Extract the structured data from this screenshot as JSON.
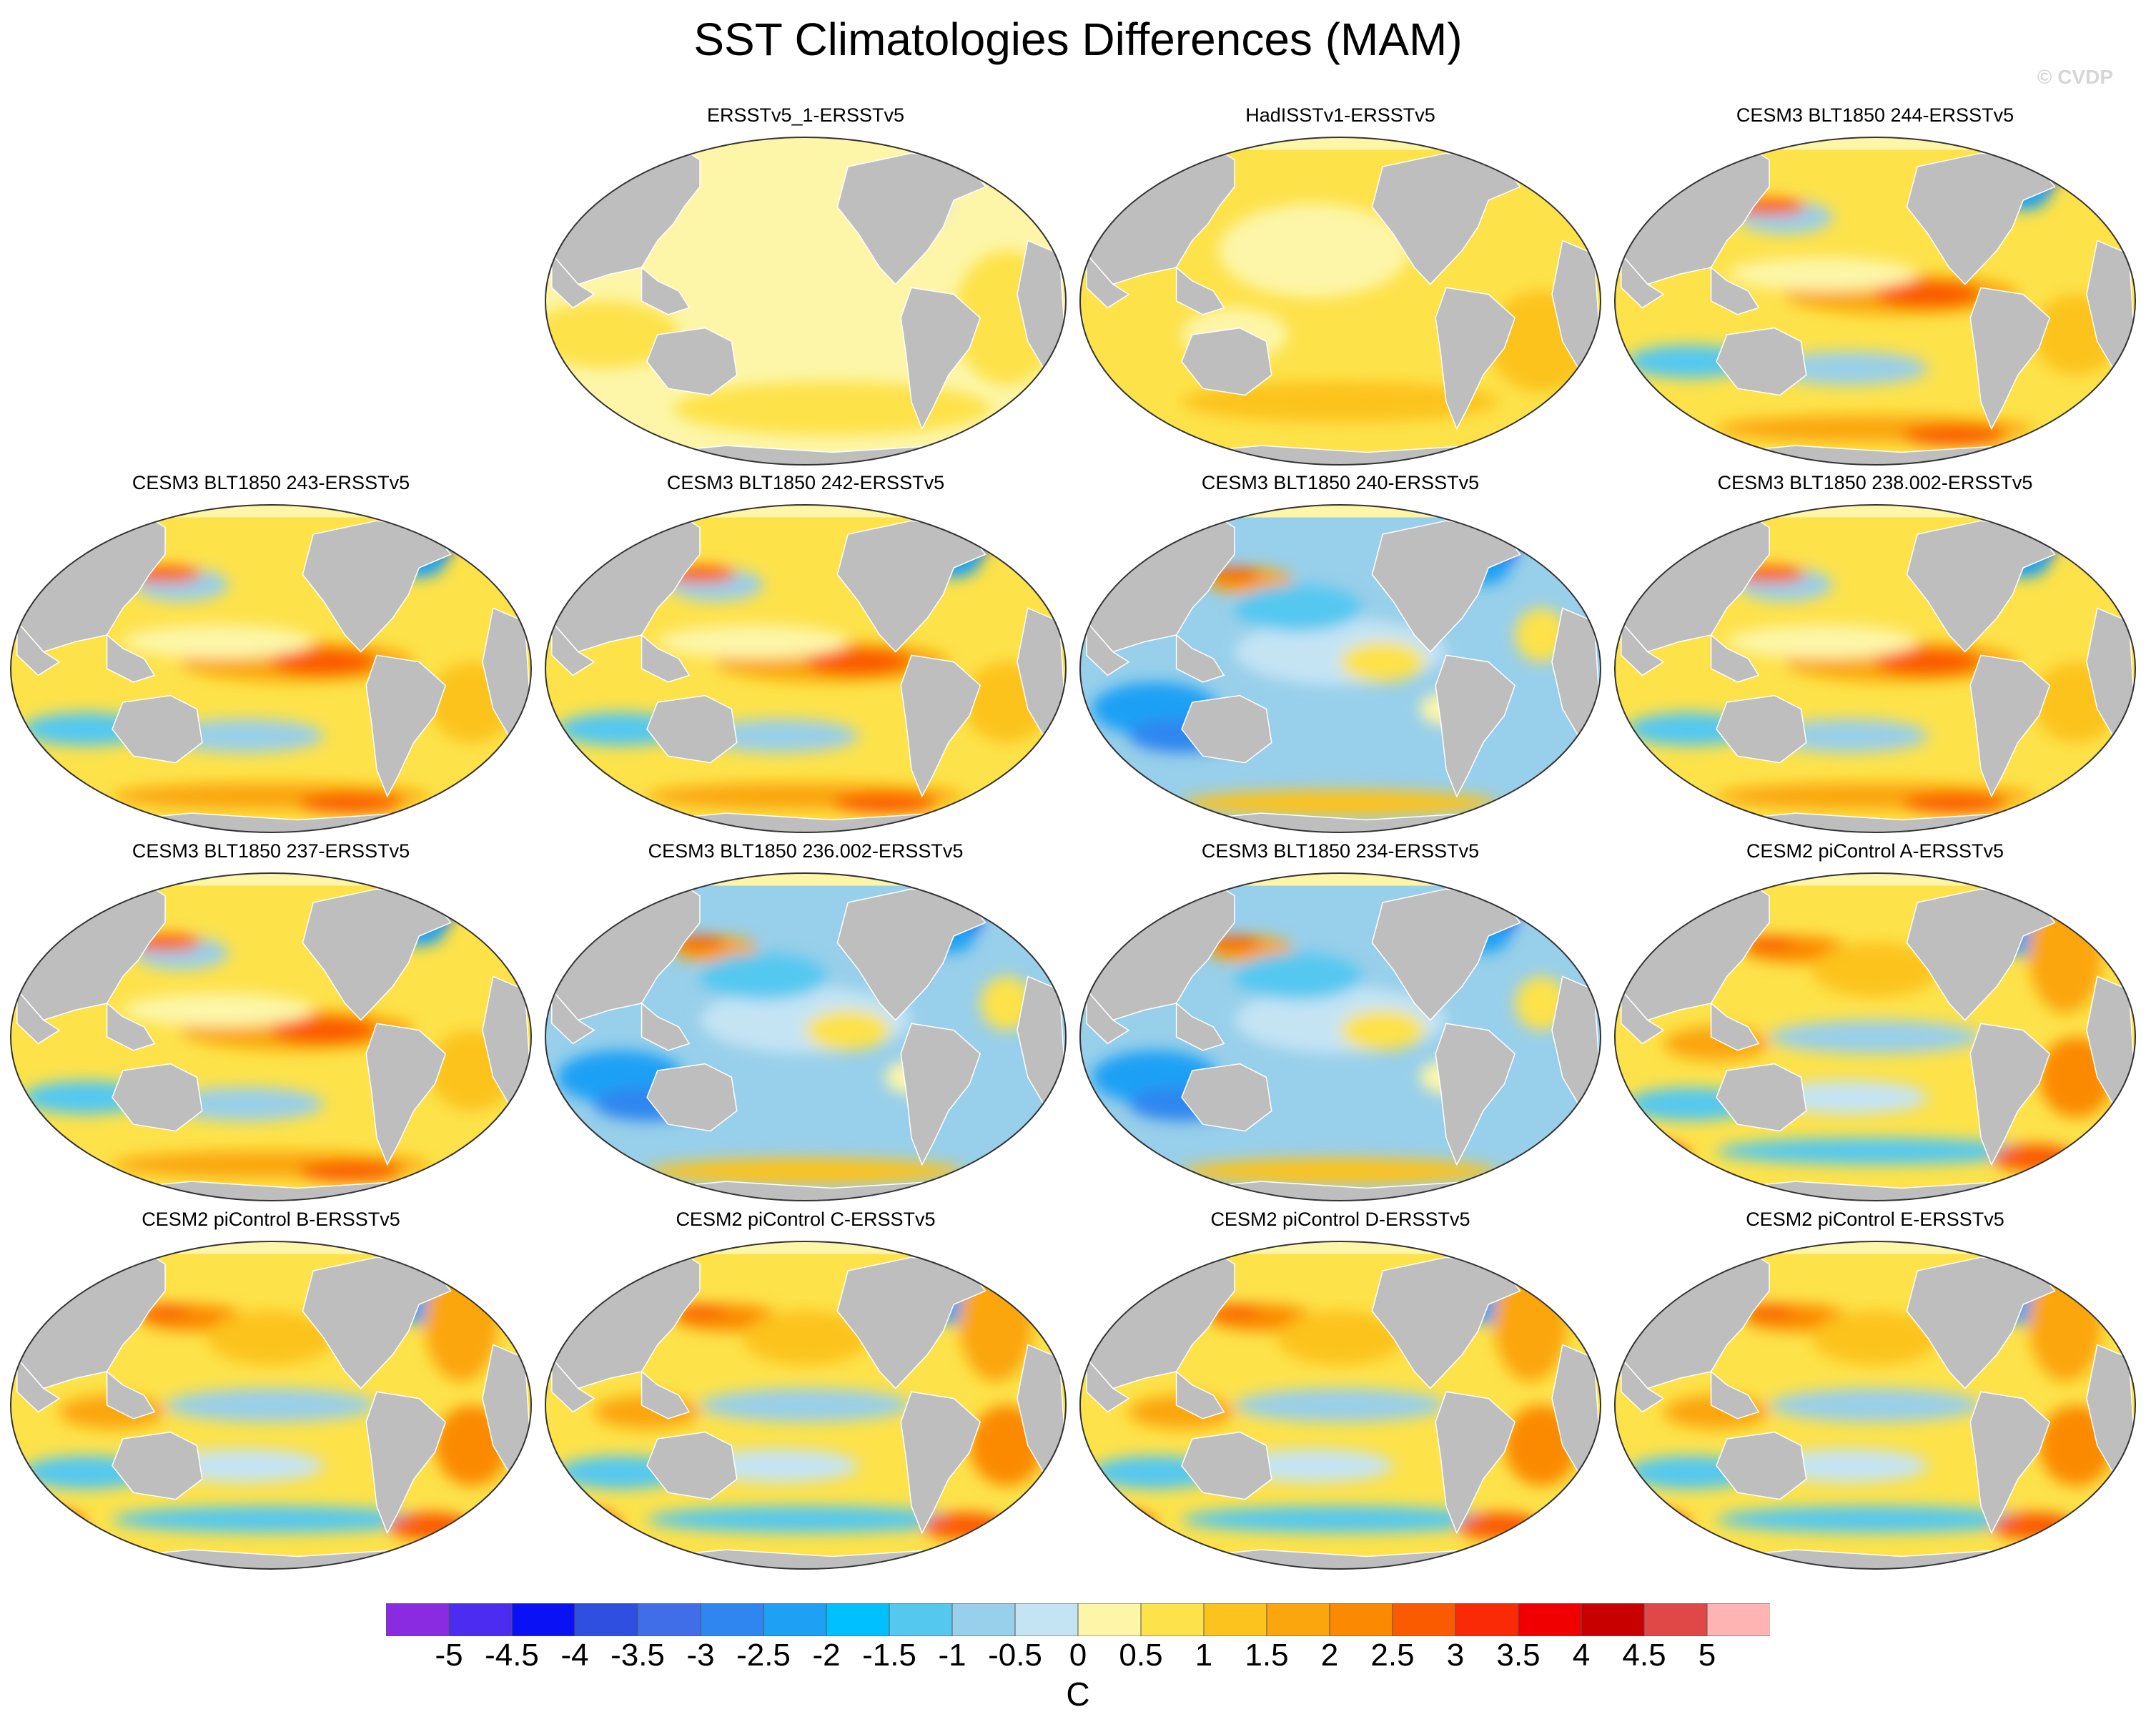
{
  "title": "SST Climatologies Differences (MAM)",
  "credit": "© CVDP",
  "panels": [
    {
      "label": "ERSSTv5_1-ERSSTv5",
      "pattern": "uniform-warm-light"
    },
    {
      "label": "HadISSTv1-ERSSTv5",
      "pattern": "uniform-warm"
    },
    {
      "label": "CESM3 BLT1850 244-ERSSTv5",
      "pattern": "mixed-warm"
    },
    {
      "label": "CESM3 BLT1850 243-ERSSTv5",
      "pattern": "mixed-warm"
    },
    {
      "label": "CESM3 BLT1850 242-ERSSTv5",
      "pattern": "mixed-warm"
    },
    {
      "label": "CESM3 BLT1850 240-ERSSTv5",
      "pattern": "mixed-cool"
    },
    {
      "label": "CESM3 BLT1850 238.002-ERSSTv5",
      "pattern": "mixed-warm"
    },
    {
      "label": "CESM3 BLT1850 237-ERSSTv5",
      "pattern": "mixed-warm"
    },
    {
      "label": "CESM3 BLT1850 236.002-ERSSTv5",
      "pattern": "mixed-cool"
    },
    {
      "label": "CESM3 BLT1850 234-ERSSTv5",
      "pattern": "mixed-cool"
    },
    {
      "label": "CESM2 piControl A-ERSSTv5",
      "pattern": "strong-warm"
    },
    {
      "label": "CESM2 piControl B-ERSSTv5",
      "pattern": "strong-warm"
    },
    {
      "label": "CESM2 piControl C-ERSSTv5",
      "pattern": "strong-warm"
    },
    {
      "label": "CESM2 piControl D-ERSSTv5",
      "pattern": "strong-warm"
    },
    {
      "label": "CESM2 piControl E-ERSSTv5",
      "pattern": "strong-warm"
    }
  ],
  "colorbar": {
    "units": "C",
    "tick_labels": [
      "-5",
      "-4.5",
      "-4",
      "-3.5",
      "-3",
      "-2.5",
      "-2",
      "-1.5",
      "-1",
      "-0.5",
      "0",
      "0.5",
      "1",
      "1.5",
      "2",
      "2.5",
      "3",
      "3.5",
      "4",
      "4.5",
      "5"
    ],
    "colors": [
      "#8a2be2",
      "#4b2cf0",
      "#0a12f5",
      "#2e4fe0",
      "#3f6ee8",
      "#2f86f0",
      "#1ea0f5",
      "#00c0ff",
      "#55c8f0",
      "#98cfea",
      "#c4e4f4",
      "#fdf6a8",
      "#fde24a",
      "#fcc31e",
      "#fba60c",
      "#fb8a00",
      "#fa5a00",
      "#fa2a06",
      "#f00000",
      "#c80000",
      "#e04848",
      "#ffb4b4"
    ]
  },
  "map_colors": {
    "land": "#bebebe",
    "ocean_neutral": "#fdf3a0"
  }
}
